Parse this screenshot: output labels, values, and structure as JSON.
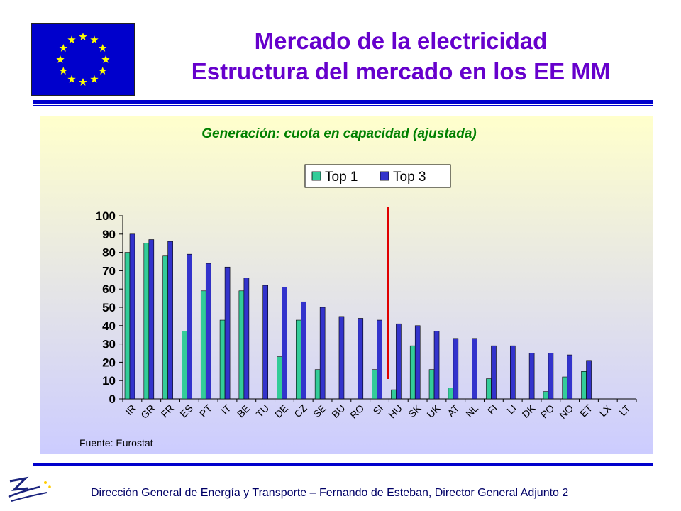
{
  "slide": {
    "title_line1": "Mercado de la electricidad",
    "title_line2": "Estructura del mercado en los EE MM",
    "footer": "Dirección General de Energía y Transporte – Fernando de Esteban, Director General Adjunto 2",
    "flag_icon": "eu-flag-icon",
    "logo_icon": "dg-tren-logo-icon"
  },
  "colors": {
    "title": "#6600cc",
    "rule": "#0000cc",
    "top1": "#33cc99",
    "top3": "#3333cc",
    "chart_title": "#008000",
    "marker": "#e00000"
  },
  "chart_data": {
    "type": "bar",
    "title": "Generación: cuota en capacidad (ajustada)",
    "source": "Fuente: Eurostat",
    "categories": [
      "IR",
      "GR",
      "FR",
      "ES",
      "PT",
      "IT",
      "BE",
      "TU",
      "DE",
      "CZ",
      "SE",
      "BU",
      "RO",
      "SI",
      "HU",
      "SK",
      "UK",
      "AT",
      "NL",
      "FI",
      "LI",
      "DK",
      "PO",
      "NO",
      "ET",
      "LX",
      "LT"
    ],
    "series": [
      {
        "name": "Top 1",
        "values": [
          80,
          85,
          78,
          37,
          59,
          43,
          59,
          0,
          23,
          43,
          16,
          0,
          0,
          16,
          5,
          29,
          16,
          6,
          0,
          11,
          0,
          0,
          4,
          12,
          15,
          0,
          0
        ]
      },
      {
        "name": "Top 3",
        "values": [
          90,
          87,
          86,
          79,
          74,
          72,
          66,
          62,
          61,
          53,
          50,
          45,
          44,
          43,
          41,
          40,
          37,
          33,
          33,
          29,
          29,
          25,
          25,
          24,
          21,
          0,
          0
        ]
      }
    ],
    "ylim": [
      0,
      100
    ],
    "yticks": [
      0,
      10,
      20,
      30,
      40,
      50,
      60,
      70,
      80,
      90,
      100
    ],
    "legend_position": "top-center",
    "marker_line_after": "SI"
  }
}
